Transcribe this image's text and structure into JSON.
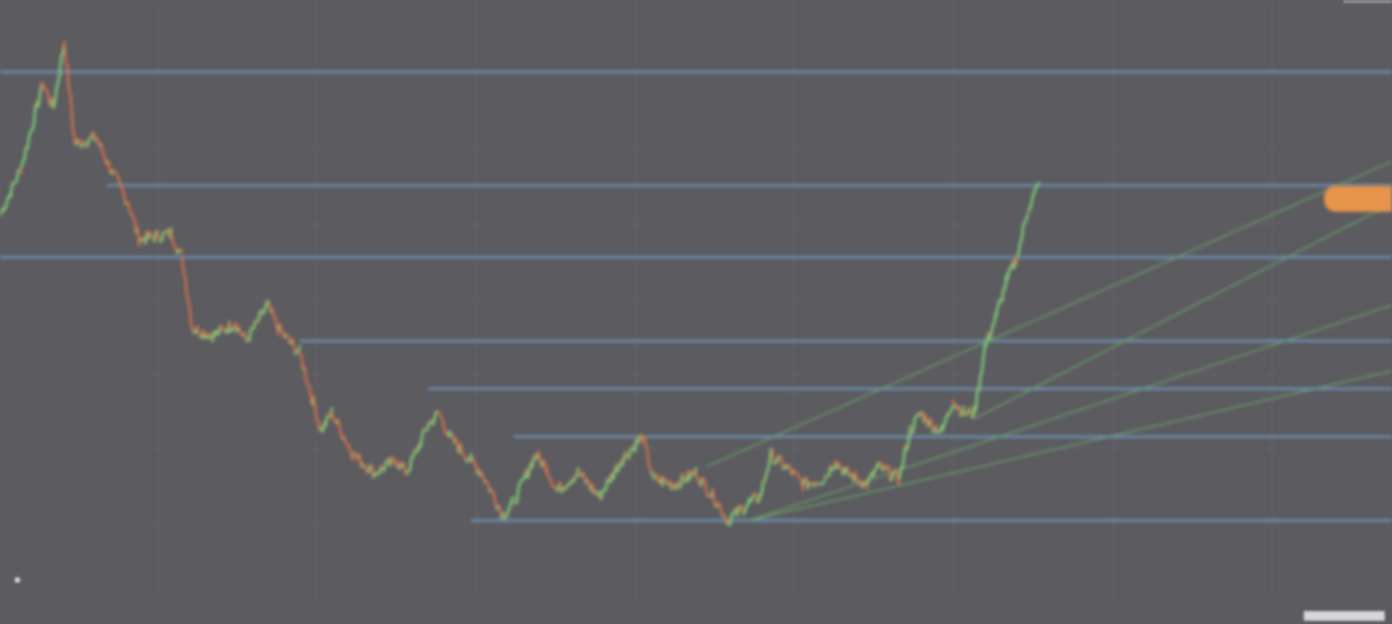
{
  "legend": {
    "line1": "",
    "line2": ""
  },
  "price_tag": {
    "label": ""
  },
  "colors": {
    "background": "#5b5b60",
    "grid": "#67676d",
    "level_line": "#6f93b3",
    "trend_line": "#6ea86a",
    "candle_up": "#7fd07a",
    "candle_down": "#d2704f",
    "price_tag": "#e8944c"
  },
  "chart_data": {
    "type": "candlestick",
    "title": "",
    "xlabel": "",
    "ylabel": "",
    "grid": true,
    "ylim": [
      0,
      100
    ],
    "xlim": [
      0,
      130
    ],
    "x_ticks": [
      "",
      "",
      "",
      "",
      "",
      "",
      "",
      "",
      ""
    ],
    "y_ticks": [
      "",
      "",
      "",
      ""
    ],
    "series": [
      {
        "values": [
          [
            0,
            64
          ],
          [
            2,
            72
          ],
          [
            4,
            86
          ],
          [
            5,
            82
          ],
          [
            6,
            93
          ],
          [
            7,
            76
          ],
          [
            9,
            77
          ],
          [
            10,
            73
          ],
          [
            12,
            66
          ],
          [
            13,
            60
          ],
          [
            16,
            61
          ],
          [
            17,
            57
          ],
          [
            18,
            45
          ],
          [
            20,
            44
          ],
          [
            22,
            46
          ],
          [
            23,
            43
          ],
          [
            25,
            49
          ],
          [
            26,
            45
          ],
          [
            28,
            41
          ],
          [
            30,
            28
          ],
          [
            31,
            31
          ],
          [
            33,
            24
          ],
          [
            35,
            21
          ],
          [
            37,
            23
          ],
          [
            38,
            21
          ],
          [
            40,
            29
          ],
          [
            41,
            31
          ],
          [
            42,
            27
          ],
          [
            44,
            23
          ],
          [
            45,
            21
          ],
          [
            47,
            14
          ],
          [
            48,
            16
          ],
          [
            50,
            24
          ],
          [
            51,
            22
          ],
          [
            52,
            18
          ],
          [
            54,
            21
          ],
          [
            56,
            17
          ],
          [
            58,
            23
          ],
          [
            60,
            27
          ],
          [
            61,
            20
          ],
          [
            63,
            19
          ],
          [
            65,
            21
          ],
          [
            67,
            16
          ],
          [
            68,
            13
          ],
          [
            70,
            16
          ],
          [
            71,
            17
          ],
          [
            72,
            24
          ],
          [
            74,
            21
          ],
          [
            75,
            19
          ],
          [
            77,
            20
          ],
          [
            78,
            23
          ],
          [
            79,
            21
          ],
          [
            81,
            19
          ],
          [
            82,
            22
          ],
          [
            84,
            20
          ],
          [
            85,
            28
          ],
          [
            86,
            31
          ],
          [
            87,
            29
          ],
          [
            88,
            28
          ],
          [
            89,
            33
          ],
          [
            90,
            31
          ],
          [
            91,
            31
          ],
          [
            92,
            42
          ],
          [
            93,
            47
          ],
          [
            94,
            53
          ],
          [
            95,
            57
          ],
          [
            96,
            65
          ],
          [
            97,
            69
          ]
        ]
      }
    ],
    "levels": [
      88,
      69,
      57,
      43,
      35,
      27,
      13
    ],
    "trendlines": [
      {
        "from": [
          66,
          22
        ],
        "to": [
          130,
          73
        ]
      },
      {
        "from": [
          91,
          30
        ],
        "to": [
          130,
          66
        ]
      },
      {
        "from": [
          70,
          13
        ],
        "to": [
          130,
          49
        ]
      },
      {
        "from": [
          70,
          13
        ],
        "to": [
          130,
          38
        ]
      }
    ]
  }
}
